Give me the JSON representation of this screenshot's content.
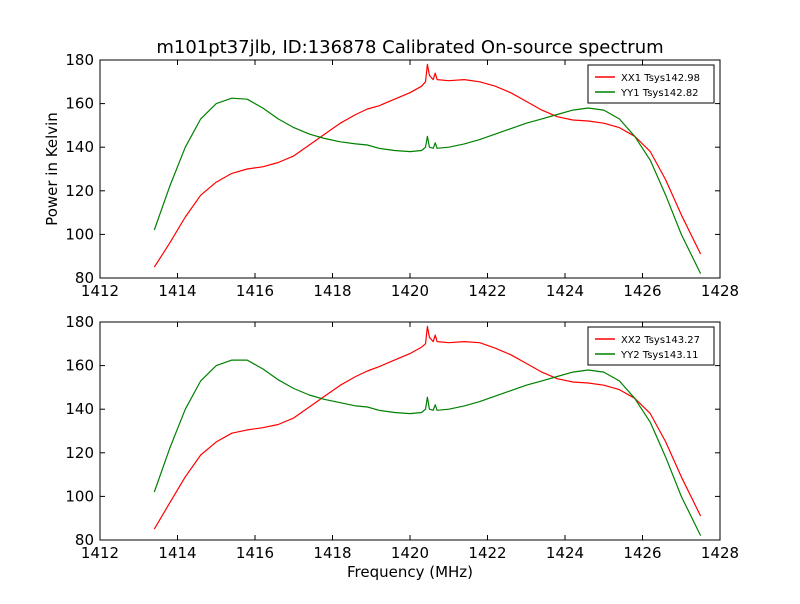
{
  "figure": {
    "title": "m101pt37jlb, ID:136878 Calibrated On-source spectrum"
  },
  "chart_data": [
    {
      "type": "line",
      "title": "m101pt37jlb, ID:136878 Calibrated On-source spectrum",
      "xlabel": "",
      "ylabel": "Power in Kelvin",
      "xlim": [
        1412,
        1428
      ],
      "ylim": [
        80,
        180
      ],
      "xticks": [
        1412,
        1414,
        1416,
        1418,
        1420,
        1422,
        1424,
        1426,
        1428
      ],
      "yticks": [
        80,
        100,
        120,
        140,
        160,
        180
      ],
      "grid": false,
      "legend": "top-right",
      "series": [
        {
          "name": "XX1 Tsys142.98",
          "color": "#ff0000",
          "points": [
            [
              1413.4,
              85
            ],
            [
              1413.8,
              96
            ],
            [
              1414.2,
              108
            ],
            [
              1414.6,
              118
            ],
            [
              1415.0,
              124
            ],
            [
              1415.4,
              128
            ],
            [
              1415.8,
              130
            ],
            [
              1416.2,
              131
            ],
            [
              1416.6,
              133
            ],
            [
              1417.0,
              136
            ],
            [
              1417.4,
              141
            ],
            [
              1417.8,
              146
            ],
            [
              1418.2,
              151
            ],
            [
              1418.6,
              155
            ],
            [
              1418.9,
              157.5
            ],
            [
              1419.2,
              159
            ],
            [
              1419.6,
              162
            ],
            [
              1420.0,
              165
            ],
            [
              1420.3,
              168
            ],
            [
              1420.4,
              170
            ],
            [
              1420.45,
              178
            ],
            [
              1420.5,
              173
            ],
            [
              1420.6,
              171
            ],
            [
              1420.65,
              174
            ],
            [
              1420.7,
              171
            ],
            [
              1421.0,
              170.5
            ],
            [
              1421.4,
              171
            ],
            [
              1421.8,
              170
            ],
            [
              1422.2,
              168
            ],
            [
              1422.6,
              165
            ],
            [
              1423.0,
              161
            ],
            [
              1423.4,
              157
            ],
            [
              1423.8,
              154
            ],
            [
              1424.2,
              152.5
            ],
            [
              1424.6,
              152
            ],
            [
              1425.0,
              151
            ],
            [
              1425.4,
              149
            ],
            [
              1425.8,
              145
            ],
            [
              1426.2,
              138
            ],
            [
              1426.6,
              125
            ],
            [
              1427.0,
              109
            ],
            [
              1427.5,
              91
            ]
          ]
        },
        {
          "name": "YY1 Tsys142.82",
          "color": "#008000",
          "points": [
            [
              1413.4,
              102
            ],
            [
              1413.8,
              122
            ],
            [
              1414.2,
              140
            ],
            [
              1414.6,
              153
            ],
            [
              1415.0,
              160
            ],
            [
              1415.4,
              162.5
            ],
            [
              1415.8,
              162
            ],
            [
              1416.2,
              158
            ],
            [
              1416.6,
              153
            ],
            [
              1417.0,
              149
            ],
            [
              1417.4,
              146
            ],
            [
              1417.8,
              144
            ],
            [
              1418.2,
              142.5
            ],
            [
              1418.6,
              141.5
            ],
            [
              1418.9,
              141
            ],
            [
              1419.2,
              139.5
            ],
            [
              1419.6,
              138.5
            ],
            [
              1420.0,
              138
            ],
            [
              1420.3,
              138.5
            ],
            [
              1420.4,
              140
            ],
            [
              1420.45,
              145
            ],
            [
              1420.5,
              140
            ],
            [
              1420.6,
              139.5
            ],
            [
              1420.65,
              142
            ],
            [
              1420.7,
              139.5
            ],
            [
              1421.0,
              140
            ],
            [
              1421.4,
              141.5
            ],
            [
              1421.8,
              143.5
            ],
            [
              1422.2,
              146
            ],
            [
              1422.6,
              148.5
            ],
            [
              1423.0,
              151
            ],
            [
              1423.4,
              153
            ],
            [
              1423.8,
              155
            ],
            [
              1424.2,
              157
            ],
            [
              1424.6,
              158
            ],
            [
              1425.0,
              157
            ],
            [
              1425.4,
              153
            ],
            [
              1425.8,
              145
            ],
            [
              1426.2,
              134
            ],
            [
              1426.6,
              118
            ],
            [
              1427.0,
              100
            ],
            [
              1427.5,
              82
            ]
          ]
        }
      ]
    },
    {
      "type": "line",
      "title": "",
      "xlabel": "Frequency (MHz)",
      "ylabel": "",
      "xlim": [
        1412,
        1428
      ],
      "ylim": [
        80,
        180
      ],
      "xticks": [
        1412,
        1414,
        1416,
        1418,
        1420,
        1422,
        1424,
        1426,
        1428
      ],
      "yticks": [
        80,
        100,
        120,
        140,
        160,
        180
      ],
      "grid": false,
      "legend": "top-right",
      "series": [
        {
          "name": "XX2 Tsys143.27",
          "color": "#ff0000",
          "points": [
            [
              1413.4,
              85
            ],
            [
              1413.8,
              97
            ],
            [
              1414.2,
              109
            ],
            [
              1414.6,
              119
            ],
            [
              1415.0,
              125
            ],
            [
              1415.4,
              129
            ],
            [
              1415.8,
              130.5
            ],
            [
              1416.2,
              131.5
            ],
            [
              1416.6,
              133
            ],
            [
              1417.0,
              136
            ],
            [
              1417.4,
              141
            ],
            [
              1417.8,
              146
            ],
            [
              1418.2,
              151
            ],
            [
              1418.6,
              155
            ],
            [
              1418.9,
              157.5
            ],
            [
              1419.2,
              159.5
            ],
            [
              1419.6,
              162.5
            ],
            [
              1420.0,
              165.5
            ],
            [
              1420.3,
              168.5
            ],
            [
              1420.4,
              170
            ],
            [
              1420.45,
              178
            ],
            [
              1420.5,
              173
            ],
            [
              1420.6,
              171
            ],
            [
              1420.65,
              174
            ],
            [
              1420.7,
              171
            ],
            [
              1421.0,
              170.5
            ],
            [
              1421.4,
              171
            ],
            [
              1421.8,
              170.5
            ],
            [
              1422.2,
              168
            ],
            [
              1422.6,
              165
            ],
            [
              1423.0,
              161
            ],
            [
              1423.4,
              157
            ],
            [
              1423.8,
              154
            ],
            [
              1424.2,
              152.5
            ],
            [
              1424.6,
              152
            ],
            [
              1425.0,
              151
            ],
            [
              1425.4,
              149
            ],
            [
              1425.8,
              145
            ],
            [
              1426.2,
              138
            ],
            [
              1426.6,
              125
            ],
            [
              1427.0,
              109
            ],
            [
              1427.5,
              91
            ]
          ]
        },
        {
          "name": "YY2 Tsys143.11",
          "color": "#008000",
          "points": [
            [
              1413.4,
              102
            ],
            [
              1413.8,
              122
            ],
            [
              1414.2,
              140
            ],
            [
              1414.6,
              153
            ],
            [
              1415.0,
              160
            ],
            [
              1415.4,
              162.5
            ],
            [
              1415.8,
              162.5
            ],
            [
              1416.2,
              158.5
            ],
            [
              1416.6,
              153.5
            ],
            [
              1417.0,
              149.5
            ],
            [
              1417.4,
              146.5
            ],
            [
              1417.8,
              144.5
            ],
            [
              1418.2,
              143
            ],
            [
              1418.6,
              141.5
            ],
            [
              1418.9,
              141
            ],
            [
              1419.2,
              139.5
            ],
            [
              1419.6,
              138.5
            ],
            [
              1420.0,
              138
            ],
            [
              1420.3,
              138.5
            ],
            [
              1420.4,
              140
            ],
            [
              1420.45,
              145.5
            ],
            [
              1420.5,
              140
            ],
            [
              1420.6,
              139.5
            ],
            [
              1420.65,
              142
            ],
            [
              1420.7,
              139.5
            ],
            [
              1421.0,
              140
            ],
            [
              1421.4,
              141.5
            ],
            [
              1421.8,
              143.5
            ],
            [
              1422.2,
              146
            ],
            [
              1422.6,
              148.5
            ],
            [
              1423.0,
              151
            ],
            [
              1423.4,
              153
            ],
            [
              1423.8,
              155
            ],
            [
              1424.2,
              157
            ],
            [
              1424.6,
              158
            ],
            [
              1425.0,
              157
            ],
            [
              1425.4,
              153
            ],
            [
              1425.8,
              145
            ],
            [
              1426.2,
              134
            ],
            [
              1426.6,
              118
            ],
            [
              1427.0,
              100
            ],
            [
              1427.5,
              82
            ]
          ]
        }
      ]
    }
  ]
}
